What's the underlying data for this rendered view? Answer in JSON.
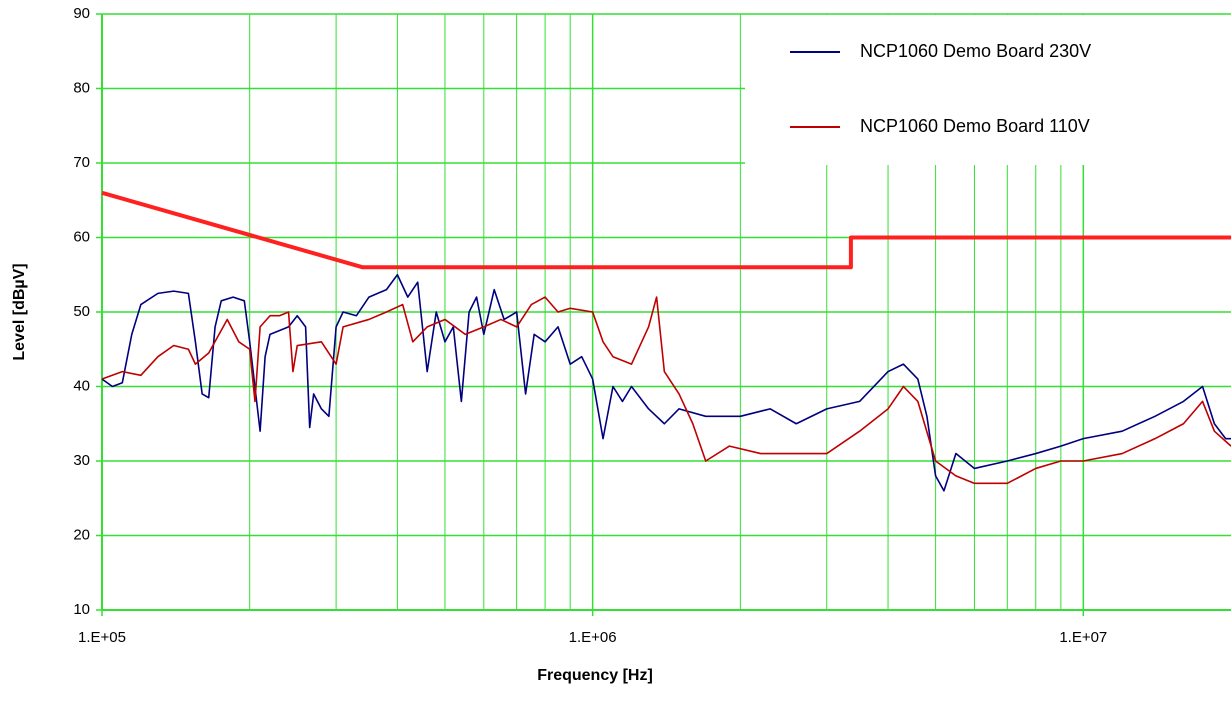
{
  "chart_data": {
    "type": "line",
    "xlabel": "Frequency [Hz]",
    "ylabel": "Level [dBµV]",
    "xscale": "log",
    "xlim": [
      100000,
      20000000
    ],
    "ylim": [
      10,
      90
    ],
    "xticks": [
      {
        "value": 100000,
        "label": "1.E+05"
      },
      {
        "value": 1000000,
        "label": "1.E+06"
      },
      {
        "value": 10000000,
        "label": "1.E+07"
      }
    ],
    "yticks": [
      10,
      20,
      30,
      40,
      50,
      60,
      70,
      80,
      90
    ],
    "grid": true,
    "grid_color": "#33e033",
    "legend": "upper right",
    "series": [
      {
        "name": "NCP1060 Demo Board 230V",
        "color": "#000080",
        "x": [
          100000,
          105000,
          110000,
          115000,
          120000,
          130000,
          140000,
          150000,
          155000,
          160000,
          165000,
          170000,
          175000,
          185000,
          195000,
          200000,
          210000,
          215000,
          220000,
          240000,
          250000,
          260000,
          265000,
          270000,
          280000,
          290000,
          300000,
          310000,
          330000,
          350000,
          380000,
          400000,
          420000,
          440000,
          460000,
          480000,
          500000,
          520000,
          540000,
          560000,
          580000,
          600000,
          630000,
          660000,
          700000,
          730000,
          760000,
          800000,
          850000,
          900000,
          950000,
          1000000,
          1050000,
          1100000,
          1150000,
          1200000,
          1300000,
          1400000,
          1500000,
          1700000,
          2000000,
          2300000,
          2600000,
          3000000,
          3500000,
          4000000,
          4300000,
          4600000,
          4800000,
          5000000,
          5200000,
          5500000,
          6000000,
          7000000,
          8000000,
          9000000,
          10000000,
          12000000,
          14000000,
          16000000,
          17500000,
          18500000,
          19500000,
          20000000
        ],
        "values": [
          41,
          40,
          40.5,
          47,
          51,
          52.5,
          52.8,
          52.5,
          46,
          39,
          38.5,
          48,
          51.5,
          52,
          51.5,
          46,
          34,
          44,
          47,
          48,
          49.5,
          48,
          34.5,
          39,
          37,
          36,
          48,
          50,
          49.5,
          52,
          53,
          55,
          52,
          54,
          42,
          50,
          46,
          48,
          38,
          50,
          52,
          47,
          53,
          49,
          50,
          39,
          47,
          46,
          48,
          43,
          44,
          41,
          33,
          40,
          38,
          40,
          37,
          35,
          37,
          36,
          36,
          37,
          35,
          37,
          38,
          42,
          43,
          41,
          36,
          28,
          26,
          31,
          29,
          30,
          31,
          32,
          33,
          34,
          36,
          38,
          40,
          35,
          33,
          33
        ]
      },
      {
        "name": "NCP1060 Demo Board 110V",
        "color": "#c00000",
        "x": [
          100000,
          110000,
          120000,
          130000,
          140000,
          150000,
          155000,
          165000,
          180000,
          190000,
          200000,
          205000,
          210000,
          220000,
          230000,
          240000,
          245000,
          250000,
          280000,
          300000,
          310000,
          350000,
          380000,
          410000,
          430000,
          460000,
          500000,
          550000,
          600000,
          650000,
          700000,
          750000,
          800000,
          850000,
          900000,
          1000000,
          1050000,
          1100000,
          1200000,
          1300000,
          1350000,
          1400000,
          1500000,
          1600000,
          1700000,
          1900000,
          2200000,
          2500000,
          3000000,
          3500000,
          4000000,
          4300000,
          4600000,
          5000000,
          5500000,
          6000000,
          7000000,
          8000000,
          9000000,
          10000000,
          12000000,
          14000000,
          16000000,
          17500000,
          18500000,
          20000000
        ],
        "values": [
          41,
          42,
          41.5,
          44,
          45.5,
          45,
          43,
          44.5,
          49,
          46,
          45,
          38,
          48,
          49.5,
          49.5,
          50,
          42,
          45.5,
          46,
          43,
          48,
          49,
          50,
          51,
          46,
          48,
          49,
          47,
          48,
          49,
          48,
          51,
          52,
          50,
          50.5,
          50,
          46,
          44,
          43,
          48,
          52,
          42,
          39,
          35,
          30,
          32,
          31,
          31,
          31,
          34,
          37,
          40,
          38,
          30,
          28,
          27,
          27,
          29,
          30,
          30,
          31,
          33,
          35,
          38,
          34,
          32
        ]
      },
      {
        "color": "#ff2020",
        "x": [
          100000,
          340000,
          3360000,
          3360000,
          20000000
        ],
        "values": [
          66,
          56,
          56,
          60,
          60
        ]
      }
    ]
  }
}
